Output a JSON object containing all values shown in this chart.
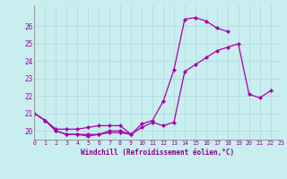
{
  "xlabel": "Windchill (Refroidissement éolien,°C)",
  "bg_color": "#c8eef0",
  "grid_color": "#b8dde0",
  "line_color": "#aa00aa",
  "line1_x": [
    0,
    1,
    2,
    3,
    4,
    5,
    6,
    7,
    8,
    9,
    10,
    11,
    12,
    13,
    14,
    15,
    16,
    17,
    18
  ],
  "line1_y": [
    21.0,
    20.6,
    20.0,
    19.8,
    19.8,
    19.8,
    19.8,
    19.9,
    19.9,
    19.8,
    20.4,
    20.6,
    21.7,
    23.5,
    26.4,
    26.5,
    26.3,
    25.9,
    25.7
  ],
  "line2_x": [
    0,
    1,
    2,
    3,
    4,
    5,
    6,
    7,
    8,
    9,
    10,
    11,
    12,
    13,
    14,
    15,
    16,
    17,
    18,
    19,
    20,
    21,
    22
  ],
  "line2_y": [
    21.0,
    20.6,
    20.1,
    20.1,
    20.1,
    20.2,
    20.3,
    20.3,
    20.3,
    19.8,
    20.2,
    20.5,
    20.3,
    20.5,
    23.4,
    23.8,
    24.2,
    24.6,
    24.8,
    25.0,
    22.1,
    21.9,
    22.3
  ],
  "line3_x": [
    0,
    1,
    2,
    3,
    4,
    5,
    6,
    7,
    8,
    9
  ],
  "line3_y": [
    21.0,
    20.6,
    20.0,
    19.8,
    19.8,
    19.7,
    19.8,
    20.0,
    20.0,
    19.8
  ],
  "xlim": [
    0,
    23
  ],
  "ylim": [
    19.5,
    27.2
  ],
  "yticks": [
    20,
    21,
    22,
    23,
    24,
    25,
    26
  ],
  "xticks": [
    0,
    1,
    2,
    3,
    4,
    5,
    6,
    7,
    8,
    9,
    10,
    11,
    12,
    13,
    14,
    15,
    16,
    17,
    18,
    19,
    20,
    21,
    22,
    23
  ]
}
